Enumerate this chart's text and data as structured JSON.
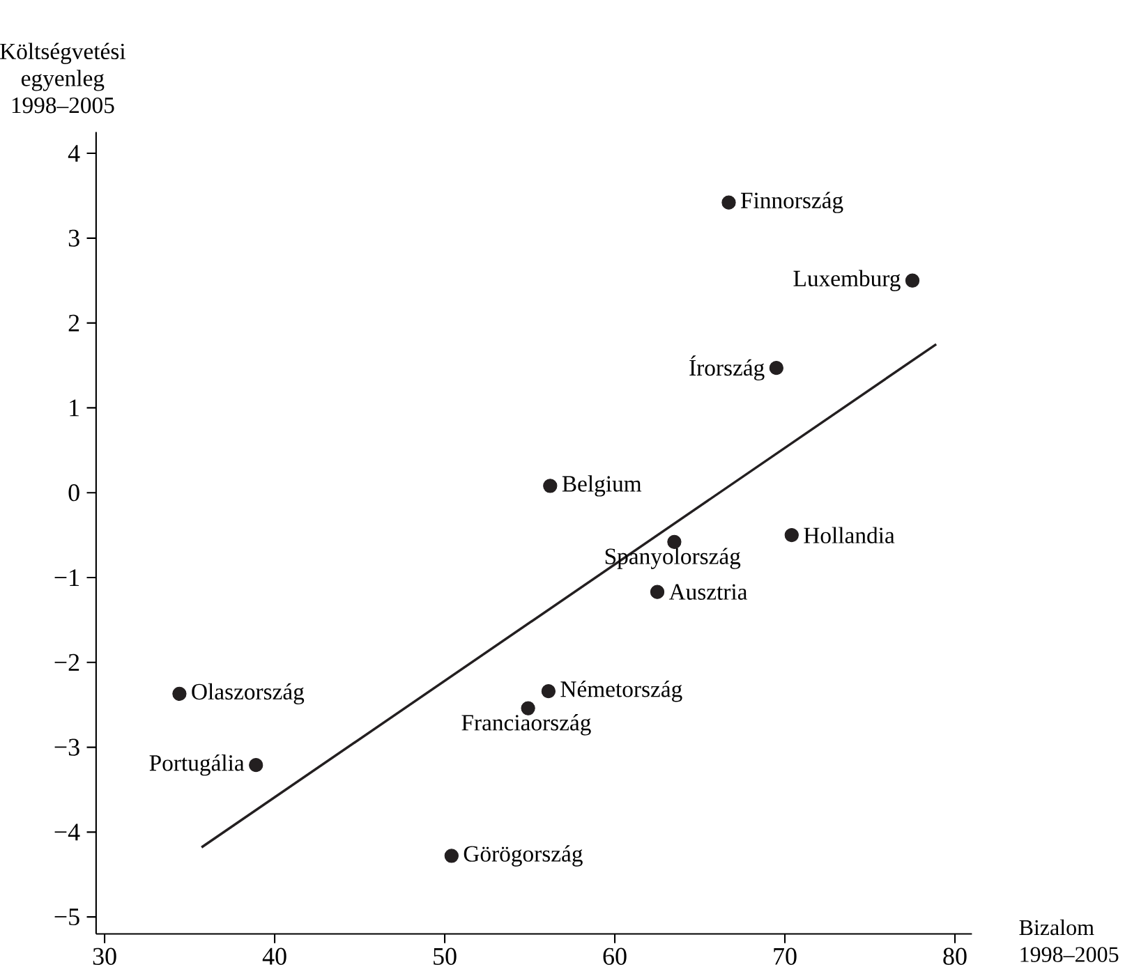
{
  "chart_data": {
    "type": "scatter",
    "xlabel": "Bizalom 1998–2005",
    "ylabel": "Költségvetési egyenleg 1998–2005",
    "xlim": [
      29.5,
      81
    ],
    "ylim": [
      -5.2,
      4.25
    ],
    "xticks": [
      30,
      40,
      50,
      60,
      70,
      80
    ],
    "yticks": [
      {
        "value": -5,
        "label": "−5"
      },
      {
        "value": -4,
        "label": "−4"
      },
      {
        "value": -3,
        "label": "−3"
      },
      {
        "value": -2,
        "label": "−2"
      },
      {
        "value": -1,
        "label": "−1"
      },
      0,
      1,
      2,
      3,
      4
    ],
    "series": [
      {
        "marker": "circle",
        "color": "#231f20",
        "x": [
          66.7,
          77.5,
          69.5,
          56.2,
          70.4,
          63.5,
          62.5,
          34.4,
          56.1,
          54.9,
          38.9,
          50.4
        ],
        "values": [
          3.42,
          2.5,
          1.47,
          0.08,
          -0.5,
          -0.58,
          -1.17,
          -2.37,
          -2.34,
          -2.54,
          -3.21,
          -4.28
        ]
      },
      {
        "type": "line",
        "marker": "none",
        "line_style": "solid",
        "color": "#231f20",
        "x": [
          35.7,
          78.9
        ],
        "values": [
          -4.18,
          1.75
        ]
      }
    ],
    "annotations": [
      {
        "text": "Finnország",
        "x": 66.7,
        "y": 3.42
      },
      {
        "text": "Luxemburg",
        "x": 77.5,
        "y": 2.5
      },
      {
        "text": "Írország",
        "x": 69.5,
        "y": 1.47
      },
      {
        "text": "Belgium",
        "x": 56.2,
        "y": 0.08
      },
      {
        "text": "Hollandia",
        "x": 70.4,
        "y": -0.5
      },
      {
        "text": "Spanyolország",
        "x": 63.5,
        "y": -0.58
      },
      {
        "text": "Ausztria",
        "x": 62.5,
        "y": -1.17
      },
      {
        "text": "Olaszország",
        "x": 34.4,
        "y": -2.37
      },
      {
        "text": "Németország",
        "x": 56.1,
        "y": -2.34
      },
      {
        "text": "Franciaország",
        "x": 54.9,
        "y": -2.54
      },
      {
        "text": "Portugália",
        "x": 38.9,
        "y": -3.21
      },
      {
        "text": "Görögország",
        "x": 50.4,
        "y": -4.28
      }
    ]
  }
}
